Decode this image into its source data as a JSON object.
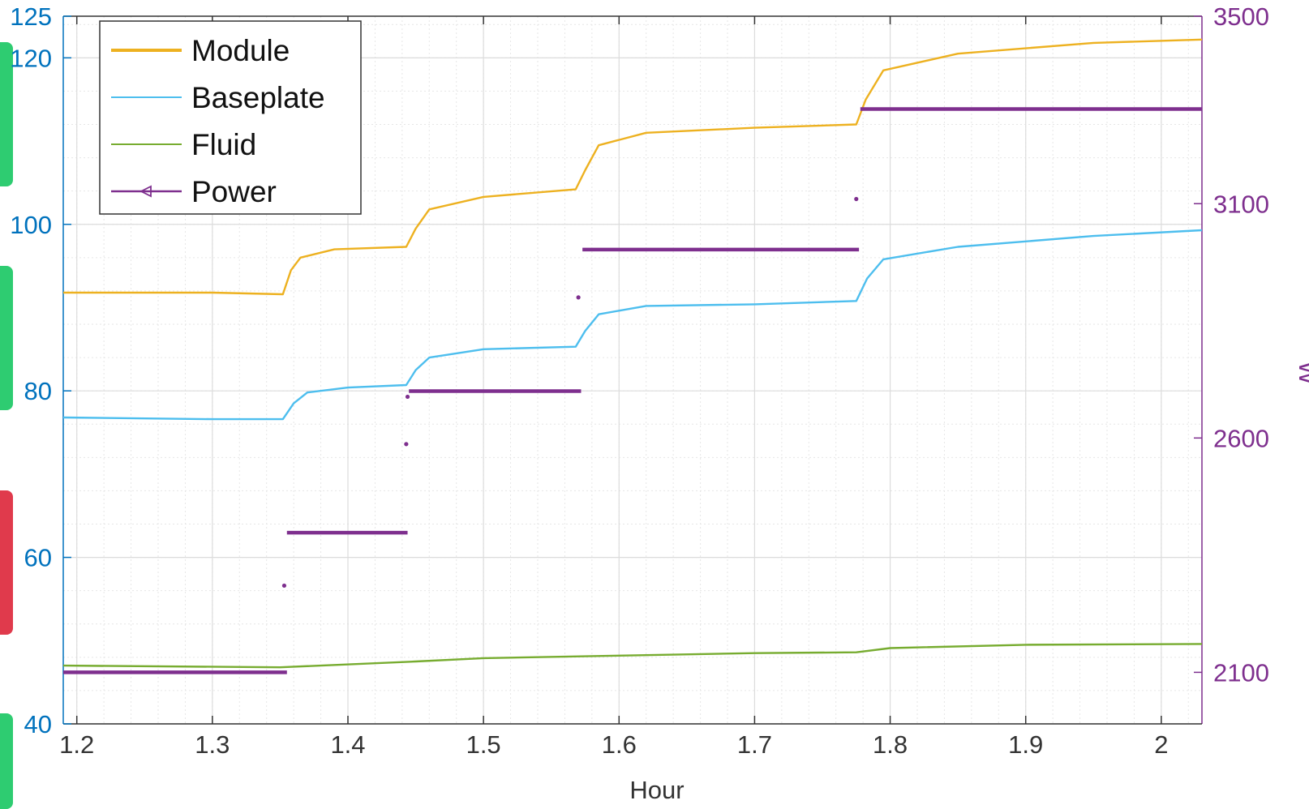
{
  "chart_data": {
    "type": "line",
    "xlabel": "Hour",
    "ylabel_left": "",
    "ylabel_right": "W",
    "xlim": [
      1.19,
      2.03
    ],
    "ylim_left": [
      40,
      125
    ],
    "ylim_right": [
      1990,
      3500
    ],
    "x_ticks": [
      "1.2",
      "1.3",
      "1.4",
      "1.5",
      "1.6",
      "1.7",
      "1.8",
      "1.9",
      "2"
    ],
    "y_left_ticks": [
      "40",
      "60",
      "80",
      "100",
      "120",
      "125"
    ],
    "y_right_ticks": [
      "2100",
      "2600",
      "3100",
      "3500"
    ],
    "grid": true,
    "legend_position": "top-left",
    "colors": {
      "Module": "#EDB120",
      "Baseplate": "#4DBEEE",
      "Fluid": "#77AC30",
      "Power": "#7E2F8E",
      "left_axis": "#0072BD",
      "right_axis": "#7E2F8E"
    },
    "series": [
      {
        "name": "Module",
        "axis": "left",
        "points": [
          [
            1.19,
            91.8
          ],
          [
            1.3,
            91.8
          ],
          [
            1.352,
            91.6
          ],
          [
            1.358,
            94.5
          ],
          [
            1.365,
            96.0
          ],
          [
            1.39,
            97.0
          ],
          [
            1.443,
            97.3
          ],
          [
            1.45,
            99.5
          ],
          [
            1.46,
            101.8
          ],
          [
            1.5,
            103.3
          ],
          [
            1.568,
            104.2
          ],
          [
            1.575,
            106.5
          ],
          [
            1.585,
            109.5
          ],
          [
            1.62,
            111.0
          ],
          [
            1.7,
            111.6
          ],
          [
            1.775,
            112.0
          ],
          [
            1.782,
            115.0
          ],
          [
            1.795,
            118.5
          ],
          [
            1.85,
            120.5
          ],
          [
            1.95,
            121.8
          ],
          [
            2.03,
            122.2
          ]
        ]
      },
      {
        "name": "Baseplate",
        "axis": "left",
        "points": [
          [
            1.19,
            76.8
          ],
          [
            1.3,
            76.6
          ],
          [
            1.352,
            76.6
          ],
          [
            1.36,
            78.5
          ],
          [
            1.37,
            79.8
          ],
          [
            1.4,
            80.4
          ],
          [
            1.443,
            80.7
          ],
          [
            1.45,
            82.5
          ],
          [
            1.46,
            84.0
          ],
          [
            1.5,
            85.0
          ],
          [
            1.568,
            85.3
          ],
          [
            1.575,
            87.2
          ],
          [
            1.585,
            89.2
          ],
          [
            1.62,
            90.2
          ],
          [
            1.7,
            90.4
          ],
          [
            1.775,
            90.8
          ],
          [
            1.783,
            93.5
          ],
          [
            1.795,
            95.8
          ],
          [
            1.85,
            97.3
          ],
          [
            1.95,
            98.6
          ],
          [
            2.03,
            99.3
          ]
        ]
      },
      {
        "name": "Fluid",
        "axis": "left",
        "points": [
          [
            1.19,
            47.0
          ],
          [
            1.35,
            46.8
          ],
          [
            1.45,
            47.5
          ],
          [
            1.5,
            47.9
          ],
          [
            1.6,
            48.2
          ],
          [
            1.7,
            48.5
          ],
          [
            1.775,
            48.6
          ],
          [
            1.8,
            49.1
          ],
          [
            1.9,
            49.5
          ],
          [
            2.03,
            49.6
          ]
        ]
      },
      {
        "name": "Power",
        "axis": "right",
        "segments": [
          {
            "x": [
              1.19,
              1.355
            ],
            "y": 2100
          },
          {
            "x": [
              1.355,
              1.444
            ],
            "y": 2398
          },
          {
            "x": [
              1.445,
              1.572
            ],
            "y": 2700
          },
          {
            "x": [
              1.573,
              1.777
            ],
            "y": 3002
          },
          {
            "x": [
              1.778,
              2.03
            ],
            "y": 3302
          }
        ],
        "points": [
          [
            1.353,
            2285
          ],
          [
            1.443,
            2587
          ],
          [
            1.444,
            2688
          ],
          [
            1.57,
            2900
          ],
          [
            1.775,
            3110
          ]
        ]
      }
    ]
  }
}
